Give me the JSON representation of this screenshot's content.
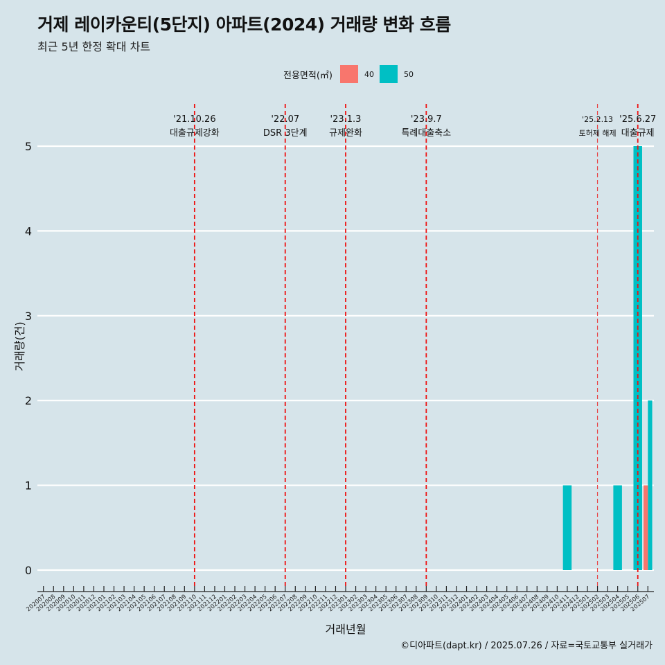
{
  "header": {
    "title": "거제 레이카운티(5단지) 아파트(2024) 거래량 변화 흐름",
    "subtitle": "최근 5년 한정 확대 차트"
  },
  "caption": "©디아파트(dapt.kr) / 2025.07.26 / 자료=국토교통부 실거래가",
  "colors": {
    "background": "#d6e4ea",
    "series_40": "#f8766d",
    "series_50": "#00bfc4",
    "event_line": "#ee1111",
    "grid": "#ffffff"
  },
  "chart_data": {
    "type": "bar",
    "xlabel": "거래년월",
    "ylabel": "거래량(건)",
    "ylim": [
      0,
      5
    ],
    "y_ticks": [
      0,
      1,
      2,
      3,
      4,
      5
    ],
    "grid": "horizontal",
    "legend": {
      "title": "전용면적(㎡)",
      "position": "top",
      "entries": [
        {
          "label": "40",
          "color": "#f8766d"
        },
        {
          "label": "50",
          "color": "#00bfc4"
        }
      ]
    },
    "categories": [
      "202007",
      "202008",
      "202009",
      "202010",
      "202011",
      "202012",
      "202101",
      "202102",
      "202103",
      "202104",
      "202105",
      "202106",
      "202107",
      "202108",
      "202109",
      "202110",
      "202111",
      "202112",
      "202201",
      "202202",
      "202203",
      "202204",
      "202205",
      "202206",
      "202207",
      "202208",
      "202209",
      "202210",
      "202211",
      "202212",
      "202301",
      "202302",
      "202303",
      "202304",
      "202305",
      "202306",
      "202307",
      "202308",
      "202309",
      "202310",
      "202311",
      "202312",
      "202401",
      "202402",
      "202403",
      "202404",
      "202405",
      "202406",
      "202407",
      "202408",
      "202409",
      "202410",
      "202411",
      "202412",
      "202501",
      "202502",
      "202503",
      "202504",
      "202505",
      "202506",
      "202507"
    ],
    "series": [
      {
        "name": "40",
        "color": "#f8766d",
        "points": [
          {
            "x": "202507",
            "y": 1
          }
        ]
      },
      {
        "name": "50",
        "color": "#00bfc4",
        "points": [
          {
            "x": "202411",
            "y": 1
          },
          {
            "x": "202504",
            "y": 1
          },
          {
            "x": "202506",
            "y": 5
          },
          {
            "x": "202507",
            "y": 2
          }
        ]
      }
    ],
    "events": [
      {
        "x": "202110",
        "date": "'21.10.26",
        "label": "대출규제강화",
        "style": "dashed"
      },
      {
        "x": "202207",
        "date": "'22.07",
        "label": "DSR 3단계",
        "style": "dashed"
      },
      {
        "x": "202301",
        "date": "'23.1.3",
        "label": "규제완화",
        "style": "dashed"
      },
      {
        "x": "202309",
        "date": "'23.9.7",
        "label": "특례대출축소",
        "style": "dashed"
      },
      {
        "x": "202502",
        "date": "'25.2.13",
        "label": "토허제 해제",
        "style": "dashed-light"
      },
      {
        "x": "202506",
        "date": "'25.6.27",
        "label": "대출규제",
        "style": "dashed"
      }
    ]
  }
}
